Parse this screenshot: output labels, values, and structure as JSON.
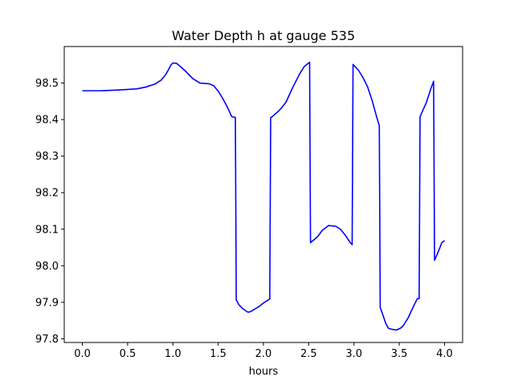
{
  "chart_data": {
    "type": "line",
    "title": "Water Depth h at gauge 535",
    "xlabel": "hours",
    "ylabel": "",
    "xlim": [
      -0.2,
      4.2
    ],
    "ylim": [
      97.79,
      98.6
    ],
    "xticks": [
      0.0,
      0.5,
      1.0,
      1.5,
      2.0,
      2.5,
      3.0,
      3.5,
      4.0
    ],
    "xtick_labels": [
      "0.0",
      "0.5",
      "1.0",
      "1.5",
      "2.0",
      "2.5",
      "3.0",
      "3.5",
      "4.0"
    ],
    "yticks": [
      97.8,
      97.9,
      98.0,
      98.1,
      98.2,
      98.3,
      98.4,
      98.5
    ],
    "ytick_labels": [
      "97.8",
      "97.9",
      "98.0",
      "98.1",
      "98.2",
      "98.3",
      "98.4",
      "98.5"
    ],
    "grid": false,
    "legend": "none",
    "line_color": "#0000ff",
    "series": [
      {
        "x": [
          0.0,
          0.2,
          0.4,
          0.6,
          0.7,
          0.8,
          0.87,
          0.92,
          0.95,
          0.98,
          1.0,
          1.04,
          1.08,
          1.15,
          1.22,
          1.3,
          1.4,
          1.45,
          1.5,
          1.55,
          1.6,
          1.65,
          1.69,
          1.7,
          1.73,
          1.77,
          1.82,
          1.84,
          1.87,
          1.9,
          1.95,
          2.0,
          2.05,
          2.07,
          2.08,
          2.12,
          2.17,
          2.2,
          2.25,
          2.32,
          2.4,
          2.45,
          2.5,
          2.51,
          2.52,
          2.6,
          2.65,
          2.72,
          2.8,
          2.85,
          2.9,
          2.96,
          2.98,
          2.99,
          3.05,
          3.1,
          3.15,
          3.2,
          3.25,
          3.28,
          3.29,
          3.32,
          3.35,
          3.38,
          3.42,
          3.47,
          3.52,
          3.55,
          3.6,
          3.65,
          3.7,
          3.72,
          3.73,
          3.8,
          3.85,
          3.88,
          3.89,
          3.92,
          3.95,
          3.97,
          4.0
        ],
        "y": [
          98.479,
          98.479,
          98.481,
          98.484,
          98.489,
          98.497,
          98.508,
          98.523,
          98.536,
          98.55,
          98.555,
          98.554,
          98.546,
          98.53,
          98.512,
          98.5,
          98.498,
          98.493,
          98.478,
          98.458,
          98.435,
          98.408,
          98.406,
          97.907,
          97.893,
          97.883,
          97.874,
          97.873,
          97.876,
          97.881,
          97.888,
          97.898,
          97.906,
          97.909,
          98.405,
          98.413,
          98.424,
          98.432,
          98.448,
          98.486,
          98.525,
          98.545,
          98.555,
          98.557,
          98.063,
          98.08,
          98.097,
          98.11,
          98.108,
          98.1,
          98.085,
          98.063,
          98.058,
          98.551,
          98.535,
          98.515,
          98.49,
          98.453,
          98.408,
          98.383,
          97.886,
          97.865,
          97.843,
          97.829,
          97.826,
          97.824,
          97.83,
          97.838,
          97.858,
          97.885,
          97.91,
          97.91,
          98.408,
          98.447,
          98.485,
          98.505,
          98.015,
          98.032,
          98.05,
          98.063,
          98.069
        ]
      }
    ]
  }
}
